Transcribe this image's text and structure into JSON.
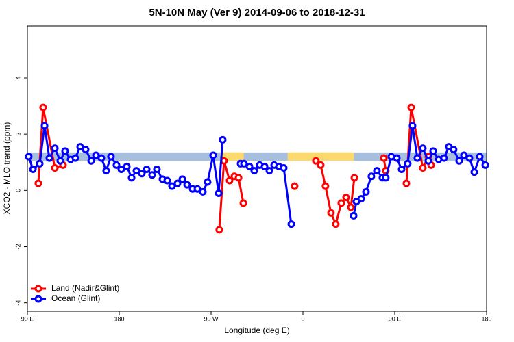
{
  "chart_data": {
    "type": "line",
    "title": "5N-10N May (Ver 9)   2014-09-06 to 2018-12-31",
    "x_label": "Longitude (deg E)",
    "y_label": "XCO2 - MLO trend (ppm)",
    "xlim": [
      90,
      540
    ],
    "ylim": [
      -4.3,
      5.85
    ],
    "xticks": [
      {
        "value": 90,
        "label": "90 E"
      },
      180,
      {
        "value": 270,
        "label": "90 W"
      },
      {
        "value": 360,
        "label": "0"
      },
      {
        "value": 450,
        "label": "90 E"
      },
      {
        "value": 540,
        "label": "180"
      }
    ],
    "yticks": [
      -4,
      -2,
      0,
      2,
      4
    ],
    "legend": "bottom-left",
    "band": {
      "ylim": [
        1.05,
        1.35
      ],
      "color": "#a7bfdf",
      "highlight_color": "#fcd96e",
      "highlights": [
        [
          279,
          302
        ],
        [
          345,
          410
        ]
      ]
    },
    "series": [
      {
        "name": "Land (Nadir&Glint)",
        "color": "#ff0000",
        "x": [
          100.7,
          105.4,
          116.9,
          124.9,
          null,
          278.0,
          282.7,
          288.1,
          292.8,
          296.9,
          301.6,
          null,
          351.9,
          null,
          372.7,
          377.4,
          382.1,
          387.5,
          392.2,
          397.6,
          402.3,
          407.0,
          410.4,
          null,
          439.2,
          441.2,
          null,
          461.4,
          466.1,
          477.5,
          482.9,
          485.6
        ],
        "values": [
          0.25,
          2.95,
          0.8,
          0.9,
          null,
          -1.4,
          1.05,
          0.35,
          0.5,
          0.45,
          -0.45,
          null,
          0.15,
          null,
          1.05,
          0.9,
          0.15,
          -0.8,
          -1.2,
          -0.45,
          -0.25,
          -0.6,
          0.45,
          null,
          1.15,
          0.7,
          null,
          0.25,
          2.95,
          0.8,
          1.2,
          0.9
        ]
      },
      {
        "name": "Ocean (Glint)",
        "color": "#0000ff",
        "x": [
          91.3,
          95.4,
          102.1,
          106.8,
          111.5,
          116.9,
          122.2,
          126.9,
          132.3,
          137.0,
          141.7,
          147.1,
          152.5,
          157.2,
          162.5,
          167.2,
          171.9,
          177.3,
          182.0,
          187.4,
          192.1,
          196.8,
          202.2,
          206.9,
          212.2,
          216.9,
          222.3,
          227.0,
          231.7,
          237.1,
          241.8,
          246.5,
          251.9,
          256.6,
          261.9,
          266.6,
          272.0,
          277.4,
          281.4,
          null,
          298.9,
          302.2,
          307.6,
          312.3,
          317.7,
          322.4,
          327.1,
          331.8,
          336.5,
          341.2,
          348.6,
          null,
          409.7,
          412.4,
          417.1,
          421.8,
          427.1,
          432.5,
          437.9,
          441.2,
          446.6,
          452.0,
          456.7,
          462.7,
          467.4,
          472.1,
          477.5,
          482.9,
          487.6,
          493.0,
          498.3,
          503.0,
          507.7,
          513.1,
          517.8,
          523.2,
          527.9,
          533.3,
          538.7
        ],
        "values": [
          1.2,
          0.75,
          0.95,
          2.3,
          1.15,
          1.5,
          1.05,
          1.4,
          1.1,
          1.15,
          1.55,
          1.45,
          1.05,
          1.25,
          1.15,
          0.7,
          1.2,
          0.9,
          0.75,
          0.85,
          0.45,
          0.7,
          0.6,
          0.75,
          0.55,
          0.75,
          0.4,
          0.35,
          0.15,
          0.25,
          0.4,
          0.2,
          0.05,
          0.05,
          -0.05,
          0.3,
          1.25,
          -0.1,
          1.8,
          null,
          0.95,
          0.95,
          0.85,
          0.7,
          0.9,
          0.85,
          0.7,
          0.9,
          0.85,
          0.8,
          -1.2,
          null,
          -0.9,
          -0.4,
          -0.3,
          -0.05,
          0.5,
          0.7,
          0.45,
          0.45,
          1.2,
          1.15,
          0.75,
          0.95,
          2.3,
          1.15,
          1.5,
          1.05,
          1.4,
          1.1,
          1.15,
          1.55,
          1.45,
          1.05,
          1.25,
          1.15,
          0.65,
          1.2,
          0.9
        ]
      }
    ]
  }
}
